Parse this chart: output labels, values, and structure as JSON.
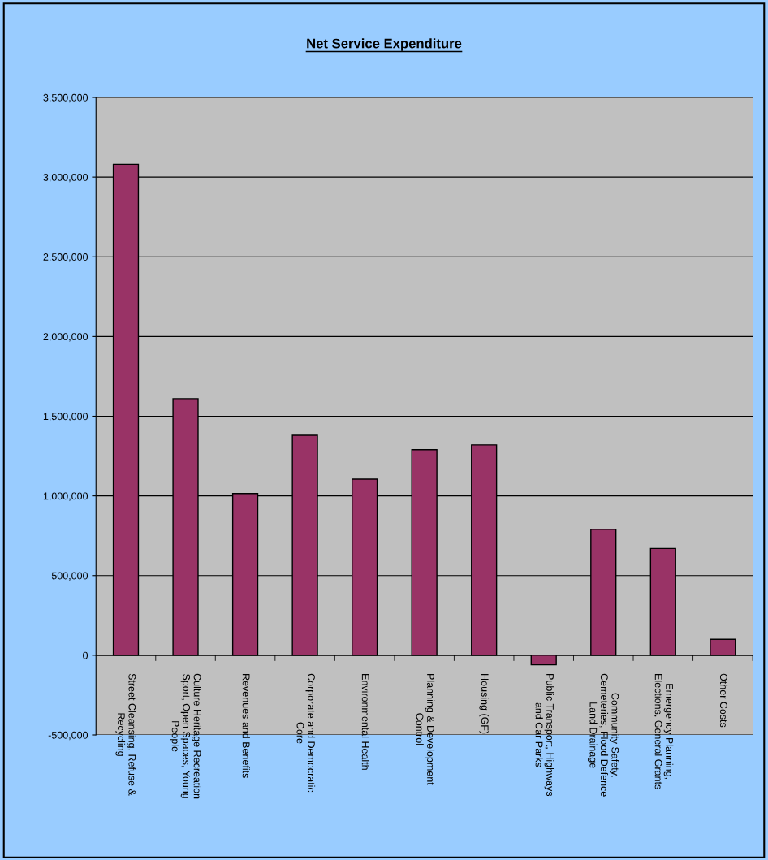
{
  "chart_data": {
    "type": "bar",
    "title": "Net Service Expenditure",
    "categories": [
      "Street Cleansing, Refuse &\nRecycling",
      "Culture Heritage Recreation\nSport, Open Spaces, Young\nPeople",
      "Revenues and Benefits",
      "Corporate and Democratic\nCore",
      "Environmental Health",
      "Planning & Development\nControl",
      "Housing (GF)",
      "Public Transport, Highways\nand Car Parks",
      "Community Safety,\nCemeteries, Flood Defence\nLand Drainage",
      "Emergency Planning,\nElections, General Grants",
      "Other Costs"
    ],
    "values": [
      3080000,
      1610000,
      1015000,
      1380000,
      1105000,
      1290000,
      1320000,
      -60000,
      790000,
      670000,
      100000
    ],
    "color": "#993366",
    "ylim": [
      -500000,
      3500000
    ],
    "yticks": [
      {
        "value": -500000,
        "label": "-500,000"
      },
      0,
      {
        "value": 500000,
        "label": "500,000"
      },
      {
        "value": 1000000,
        "label": "1,000,000"
      },
      {
        "value": 1500000,
        "label": "1,500,000"
      },
      {
        "value": 2000000,
        "label": "2,000,000"
      },
      {
        "value": 2500000,
        "label": "2,500,000"
      },
      {
        "value": 3000000,
        "label": "3,000,000"
      },
      {
        "value": 3500000,
        "label": "3,500,000"
      }
    ],
    "grid": "y",
    "legend": false
  }
}
